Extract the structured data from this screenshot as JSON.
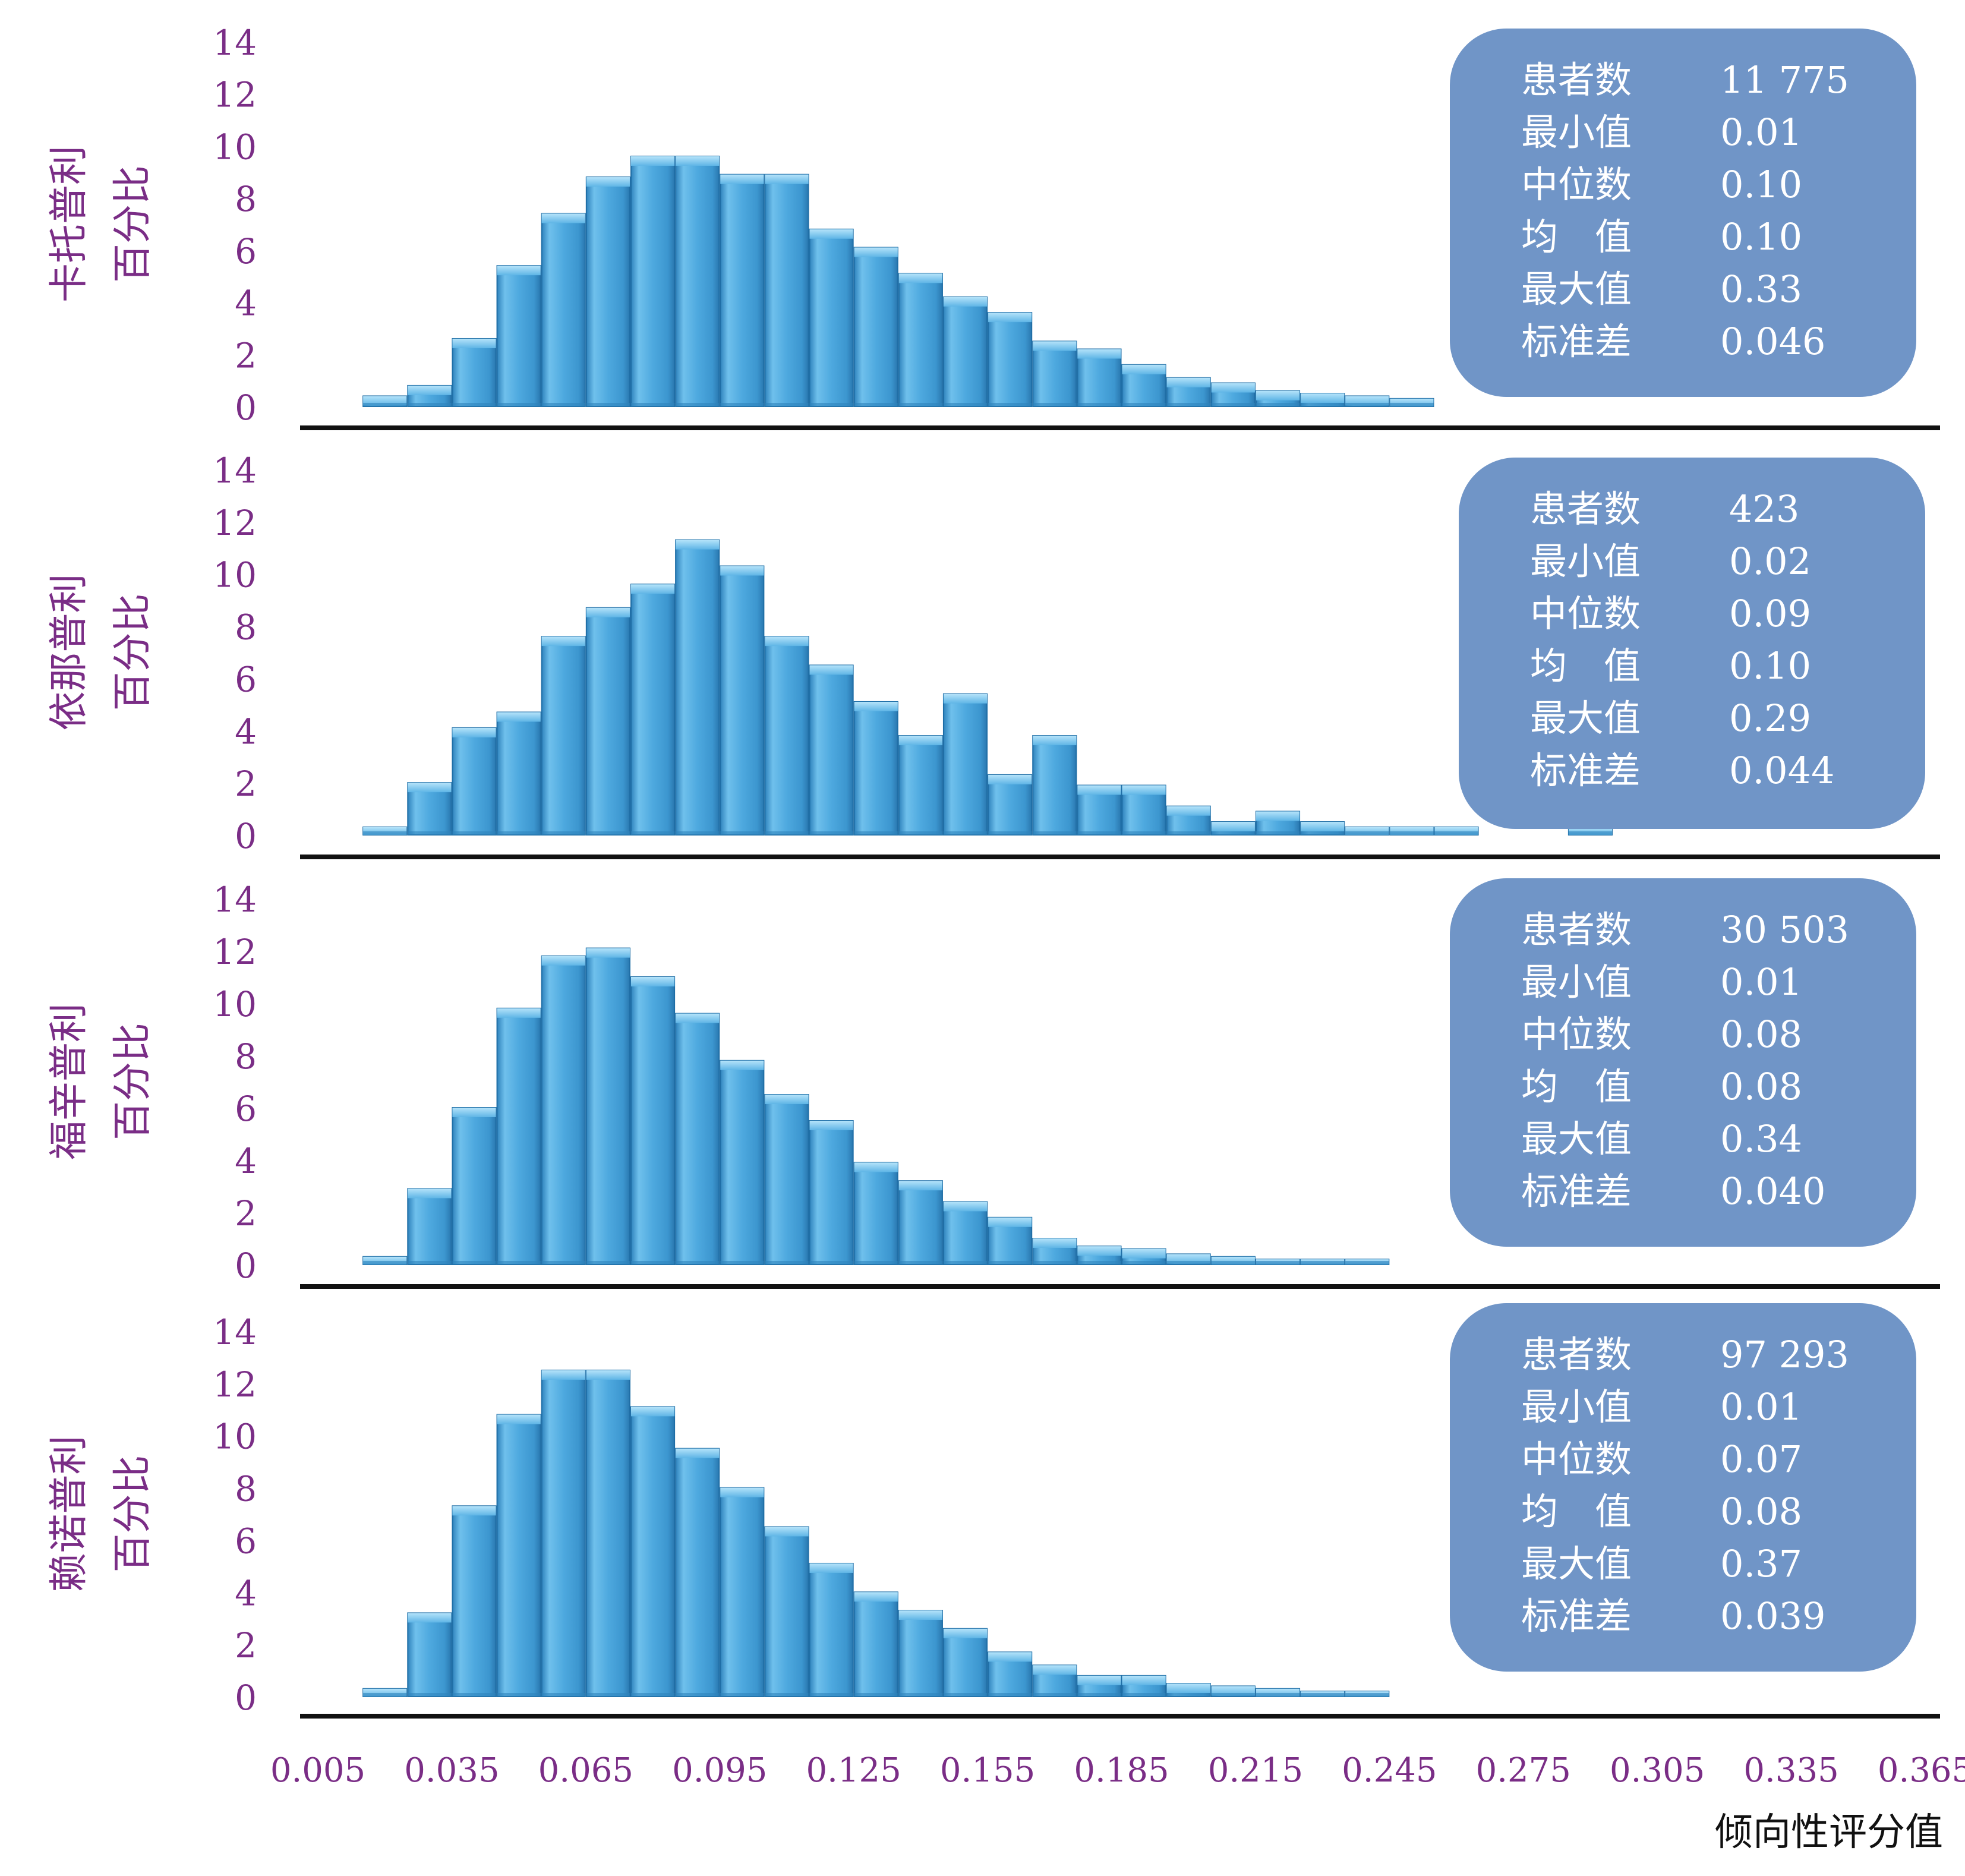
{
  "chart_data": [
    {
      "type": "bar",
      "ylabel": "卡托普利 百分比",
      "ylabel_lines": [
        "卡托普利",
        "百分比"
      ],
      "yticks": [
        "0",
        "2",
        "4",
        "6",
        "8",
        "10",
        "12",
        "14"
      ],
      "ylim": [
        0,
        14
      ],
      "bins_start": [
        0.015,
        0.025,
        0.035,
        0.045,
        0.055,
        0.065,
        0.075,
        0.085,
        0.095,
        0.105,
        0.115,
        0.125,
        0.135,
        0.145,
        0.155,
        0.165,
        0.175,
        0.185,
        0.195,
        0.205,
        0.215,
        0.225,
        0.235,
        0.245
      ],
      "values": [
        0.4,
        0.8,
        2.6,
        5.4,
        7.4,
        8.8,
        9.6,
        9.6,
        8.9,
        8.9,
        6.8,
        6.1,
        5.1,
        4.2,
        3.6,
        2.5,
        2.2,
        1.6,
        1.1,
        0.9,
        0.6,
        0.5,
        0.4,
        0.3
      ],
      "stats": [
        {
          "label": "患者数",
          "value": "11 775"
        },
        {
          "label": "最小值",
          "value": "0.01"
        },
        {
          "label": "中位数",
          "value": "0.10"
        },
        {
          "label": "均　值",
          "value": "0.10"
        },
        {
          "label": "最大值",
          "value": "0.33"
        },
        {
          "label": "标准差",
          "value": "0.046"
        }
      ]
    },
    {
      "type": "bar",
      "ylabel": "依那普利 百分比",
      "ylabel_lines": [
        "依那普利",
        "百分比"
      ],
      "yticks": [
        "0",
        "2",
        "4",
        "6",
        "8",
        "10",
        "12",
        "14"
      ],
      "ylim": [
        0,
        14
      ],
      "bins_start": [
        0.015,
        0.025,
        0.035,
        0.045,
        0.055,
        0.065,
        0.075,
        0.085,
        0.095,
        0.105,
        0.115,
        0.125,
        0.135,
        0.145,
        0.155,
        0.165,
        0.175,
        0.185,
        0.195,
        0.205,
        0.215,
        0.225,
        0.235,
        0.245,
        0.255,
        0.285
      ],
      "values": [
        0.3,
        2.0,
        4.1,
        4.7,
        7.6,
        8.7,
        9.6,
        11.3,
        10.3,
        7.6,
        6.5,
        5.1,
        3.8,
        5.4,
        2.3,
        3.8,
        1.9,
        1.9,
        1.1,
        0.5,
        0.9,
        0.5,
        0.3,
        0.3,
        0.3,
        0.3
      ],
      "stats": [
        {
          "label": "患者数",
          "value": "423"
        },
        {
          "label": "最小值",
          "value": "0.02"
        },
        {
          "label": "中位数",
          "value": "0.09"
        },
        {
          "label": "均　值",
          "value": "0.10"
        },
        {
          "label": "最大值",
          "value": "0.29"
        },
        {
          "label": "标准差",
          "value": "0.044"
        }
      ]
    },
    {
      "type": "bar",
      "ylabel": "福辛普利 百分比",
      "ylabel_lines": [
        "福辛普利",
        "百分比"
      ],
      "yticks": [
        "0",
        "2",
        "4",
        "6",
        "8",
        "10",
        "12",
        "14"
      ],
      "ylim": [
        0,
        14
      ],
      "bins_start": [
        0.015,
        0.025,
        0.035,
        0.045,
        0.055,
        0.065,
        0.075,
        0.085,
        0.095,
        0.105,
        0.115,
        0.125,
        0.135,
        0.145,
        0.155,
        0.165,
        0.175,
        0.185,
        0.195,
        0.205,
        0.215,
        0.225,
        0.235
      ],
      "values": [
        0.3,
        2.9,
        6.0,
        9.8,
        11.8,
        12.1,
        11.0,
        9.6,
        7.8,
        6.5,
        5.5,
        3.9,
        3.2,
        2.4,
        1.8,
        1.0,
        0.7,
        0.6,
        0.4,
        0.3,
        0.2,
        0.2,
        0.2
      ],
      "stats": [
        {
          "label": "患者数",
          "value": "30 503"
        },
        {
          "label": "最小值",
          "value": "0.01"
        },
        {
          "label": "中位数",
          "value": "0.08"
        },
        {
          "label": "均　值",
          "value": "0.08"
        },
        {
          "label": "最大值",
          "value": "0.34"
        },
        {
          "label": "标准差",
          "value": "0.040"
        }
      ]
    },
    {
      "type": "bar",
      "ylabel": "赖诺普利 百分比",
      "ylabel_lines": [
        "赖诺普利",
        "百分比"
      ],
      "yticks": [
        "0",
        "2",
        "4",
        "6",
        "8",
        "10",
        "12",
        "14"
      ],
      "ylim": [
        0,
        14
      ],
      "bins_start": [
        0.015,
        0.025,
        0.035,
        0.045,
        0.055,
        0.065,
        0.075,
        0.085,
        0.095,
        0.105,
        0.115,
        0.125,
        0.135,
        0.145,
        0.155,
        0.165,
        0.175,
        0.185,
        0.195,
        0.205,
        0.215,
        0.225,
        0.235
      ],
      "values": [
        0.3,
        3.2,
        7.3,
        10.8,
        12.5,
        12.5,
        11.1,
        9.5,
        8.0,
        6.5,
        5.1,
        4.0,
        3.3,
        2.6,
        1.7,
        1.2,
        0.8,
        0.8,
        0.5,
        0.4,
        0.3,
        0.2,
        0.2
      ],
      "stats": [
        {
          "label": "患者数",
          "value": "97 293"
        },
        {
          "label": "最小值",
          "value": "0.01"
        },
        {
          "label": "中位数",
          "value": "0.07"
        },
        {
          "label": "均　值",
          "value": "0.08"
        },
        {
          "label": "最大值",
          "value": "0.37"
        },
        {
          "label": "标准差",
          "value": "0.039"
        }
      ]
    }
  ],
  "xaxis": {
    "label": "倾向性评分值",
    "ticks": [
      "0.005",
      "0.035",
      "0.065",
      "0.095",
      "0.125",
      "0.155",
      "0.185",
      "0.215",
      "0.245",
      "0.275",
      "0.305",
      "0.335",
      "0.365"
    ],
    "range": [
      0.005,
      0.365
    ]
  },
  "colors": {
    "bar": "#4ea9df",
    "bar_light": "#8fd0f3",
    "bar_dark": "#2f83bd",
    "label_purple": "#7a2d86",
    "stats_box": "#7095c7",
    "axis": "#111111"
  }
}
